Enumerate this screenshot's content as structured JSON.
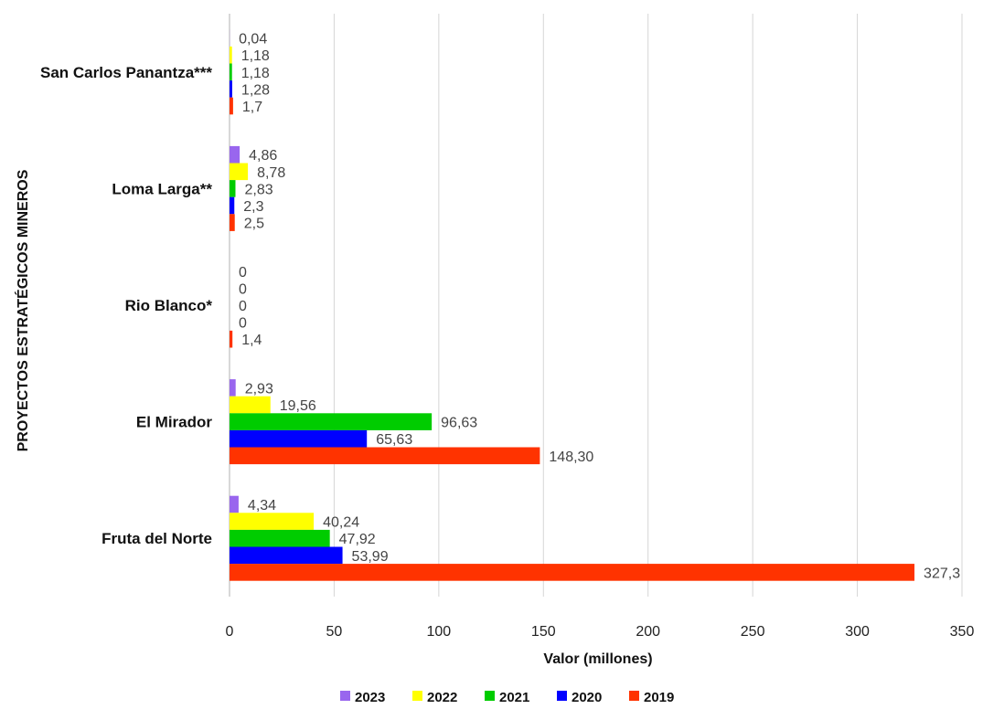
{
  "chart_data": {
    "type": "bar",
    "orientation": "horizontal",
    "title": "",
    "xlabel": "Valor (millones)",
    "ylabel": "PROYECTOS ESTRATÉGICOS MINEROS",
    "xlim": [
      0,
      350
    ],
    "x_ticks": [
      "0",
      "50",
      "100",
      "150",
      "200",
      "250",
      "300",
      "350"
    ],
    "x_tick_values": [
      0,
      50,
      100,
      150,
      200,
      250,
      300,
      350
    ],
    "grid": "vertical",
    "legend_position": "bottom",
    "categories": [
      "San Carlos Panantza***",
      "Loma Larga**",
      "Rio Blanco*",
      "El Mirador",
      "Fruta del Norte"
    ],
    "series": [
      {
        "name": "2023",
        "color": "#9966ee",
        "values": [
          0.04,
          4.86,
          0,
          2.93,
          4.34
        ],
        "labels": [
          "0,04",
          "4,86",
          "0",
          "2,93",
          "4,34"
        ]
      },
      {
        "name": "2022",
        "color": "#ffff00",
        "values": [
          1.18,
          8.78,
          0,
          19.56,
          40.24
        ],
        "labels": [
          "1,18",
          "8,78",
          "0",
          "19,56",
          "40,24"
        ]
      },
      {
        "name": "2021",
        "color": "#00cc00",
        "values": [
          1.18,
          2.83,
          0,
          96.63,
          47.92
        ],
        "labels": [
          "1,18",
          "2,83",
          "0",
          "96,63",
          "47,92"
        ]
      },
      {
        "name": "2020",
        "color": "#0000ff",
        "values": [
          1.28,
          2.3,
          0,
          65.63,
          53.99
        ],
        "labels": [
          "1,28",
          "2,3",
          "0",
          "65,63",
          "53,99"
        ]
      },
      {
        "name": "2019",
        "color": "#ff3300",
        "values": [
          1.7,
          2.5,
          1.4,
          148.3,
          327.3
        ],
        "labels": [
          "1,7",
          "2,5",
          "1,4",
          "148,30",
          "327,3"
        ]
      }
    ]
  }
}
